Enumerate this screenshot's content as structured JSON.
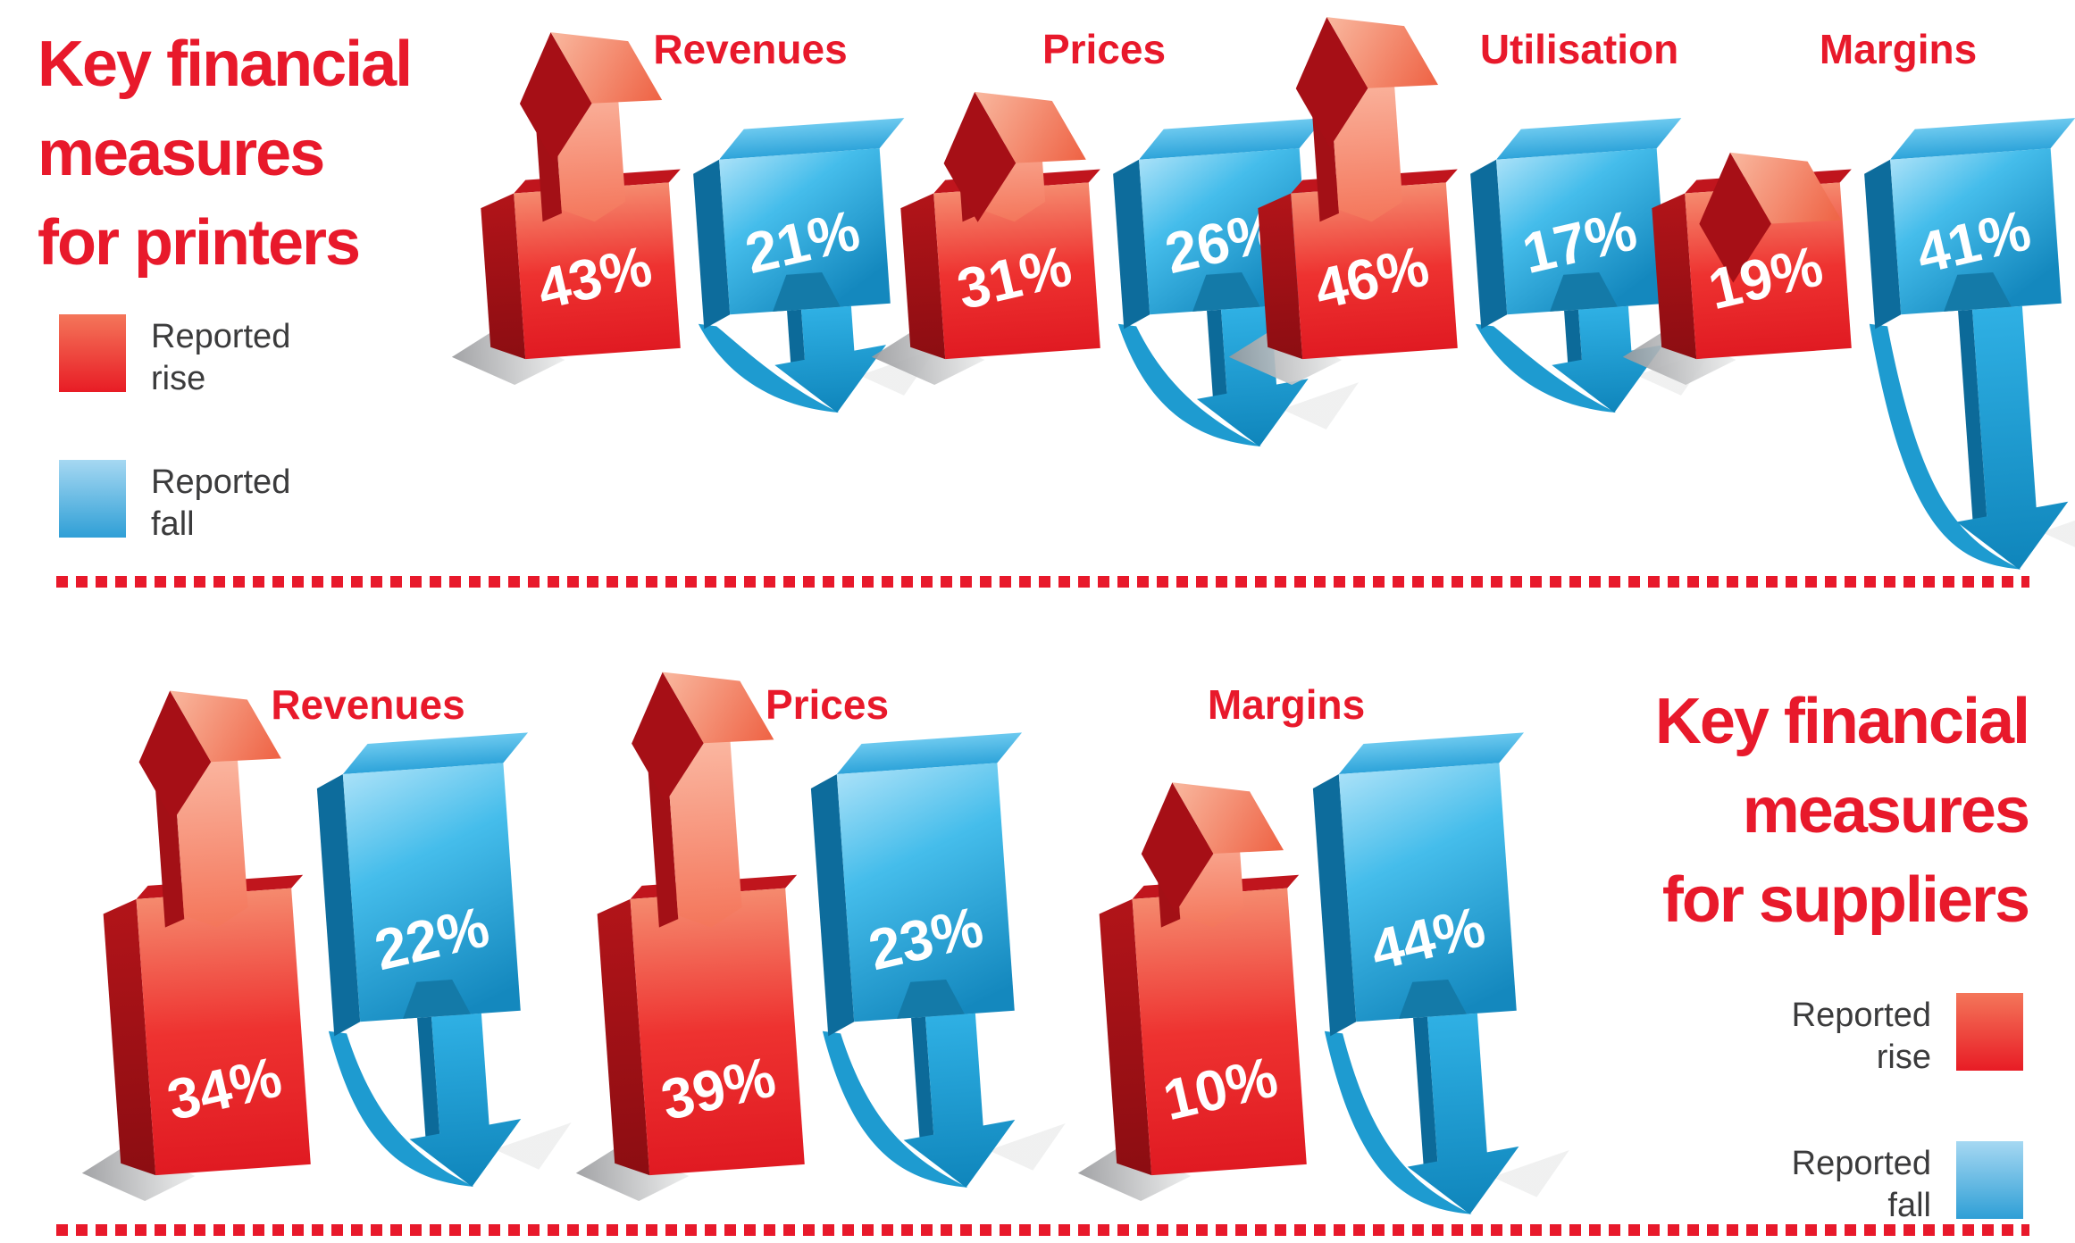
{
  "sections": [
    {
      "id": "printers",
      "title_lines": [
        "Key financial",
        "measures",
        "for printers"
      ],
      "legend": [
        {
          "lines": [
            "Reported",
            "rise"
          ],
          "type": "rise"
        },
        {
          "lines": [
            "Reported",
            "fall"
          ],
          "type": "fall"
        }
      ],
      "groups": [
        {
          "label": "Revenues",
          "rise": 43,
          "fall": 21,
          "rise_text": "43%",
          "fall_text": "21%"
        },
        {
          "label": "Prices",
          "rise": 31,
          "fall": 26,
          "rise_text": "31%",
          "fall_text": "26%"
        },
        {
          "label": "Utilisation",
          "rise": 46,
          "fall": 17,
          "rise_text": "46%",
          "fall_text": "17%"
        },
        {
          "label": "Margins",
          "rise": 19,
          "fall": 41,
          "rise_text": "19%",
          "fall_text": "41%"
        }
      ]
    },
    {
      "id": "suppliers",
      "title_lines": [
        "Key financial",
        "measures",
        "for suppliers"
      ],
      "legend": [
        {
          "lines": [
            "Reported",
            "rise"
          ],
          "type": "rise"
        },
        {
          "lines": [
            "Reported",
            "fall"
          ],
          "type": "fall"
        }
      ],
      "groups": [
        {
          "label": "Revenues",
          "rise": 34,
          "fall": 22,
          "rise_text": "34%",
          "fall_text": "22%"
        },
        {
          "label": "Prices",
          "rise": 39,
          "fall": 23,
          "rise_text": "39%",
          "fall_text": "23%"
        },
        {
          "label": "Margins",
          "rise": 10,
          "fall": 44,
          "rise_text": "10%",
          "fall_text": "44%"
        }
      ]
    }
  ],
  "colors": {
    "brand_red": "#e8192b",
    "legend_text": "#3b3b3c",
    "rise_front_top": "#f58a6e",
    "rise_front_main": "#e81c25",
    "rise_side_dark": "#9d1016",
    "rise_shaft_salmon": "#f4755a",
    "rise_arrowhead_dark": "#a60f16",
    "fall_front_light": "#a9e1f8",
    "fall_front_main": "#29a9df",
    "fall_front_deep": "#1488be",
    "fall_side_dark": "#0d6c9c",
    "fall_notch": "#147aa8",
    "shadow_gray": "#98999c",
    "value_text": "#ffffff"
  },
  "chart_data": [
    {
      "type": "bar",
      "title": "Key financial measures for printers",
      "categories": [
        "Revenues",
        "Prices",
        "Utilisation",
        "Margins"
      ],
      "series": [
        {
          "name": "Reported rise",
          "values": [
            43,
            31,
            46,
            19
          ]
        },
        {
          "name": "Reported fall",
          "values": [
            21,
            26,
            17,
            41
          ]
        }
      ],
      "unit": "%",
      "legend_position": "top-left",
      "style": "3d-rise-fall-arrows"
    },
    {
      "type": "bar",
      "title": "Key financial measures for suppliers",
      "categories": [
        "Revenues",
        "Prices",
        "Margins"
      ],
      "series": [
        {
          "name": "Reported rise",
          "values": [
            34,
            39,
            10
          ]
        },
        {
          "name": "Reported fall",
          "values": [
            22,
            23,
            44
          ]
        }
      ],
      "unit": "%",
      "legend_position": "bottom-right",
      "style": "3d-rise-fall-arrows"
    }
  ]
}
